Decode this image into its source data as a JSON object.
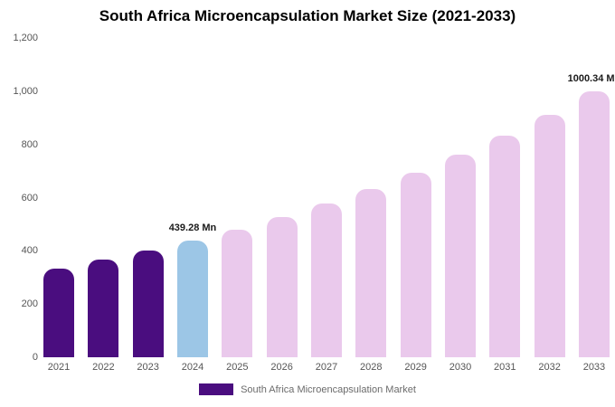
{
  "title": "South Africa Microencapsulation Market Size (2021-2033)",
  "legend": {
    "label": "South Africa Microencapsulation Market",
    "swatch_color": "#4a0d7f"
  },
  "colors": {
    "dark_purple": "#4a0d7f",
    "light_blue": "#9cc6e6",
    "light_pink": "#eac9ec",
    "axis_text": "#555555"
  },
  "chart_data": {
    "type": "bar",
    "title": "South Africa Microencapsulation Market Size (2021-2033)",
    "categories": [
      "2021",
      "2022",
      "2023",
      "2024",
      "2025",
      "2026",
      "2027",
      "2028",
      "2029",
      "2030",
      "2031",
      "2032",
      "2033"
    ],
    "values": [
      334,
      366,
      401,
      439.28,
      481,
      527,
      578,
      633,
      694,
      760,
      833,
      912,
      1000.34
    ],
    "bar_colors": [
      "#4a0d7f",
      "#4a0d7f",
      "#4a0d7f",
      "#9cc6e6",
      "#eac9ec",
      "#eac9ec",
      "#eac9ec",
      "#eac9ec",
      "#eac9ec",
      "#eac9ec",
      "#eac9ec",
      "#eac9ec",
      "#eac9ec"
    ],
    "annotations": [
      {
        "category": "2024",
        "text": "439.28 Mn"
      },
      {
        "category": "2033",
        "text": "1000.34 Mn"
      }
    ],
    "xlabel": "",
    "ylabel": "",
    "ylim": [
      0,
      1200
    ],
    "yticks": [
      {
        "value": 0,
        "label": "0"
      },
      {
        "value": 200,
        "label": "200"
      },
      {
        "value": 400,
        "label": "400"
      },
      {
        "value": 600,
        "label": "600"
      },
      {
        "value": 800,
        "label": "800"
      },
      {
        "value": 1000,
        "label": "1,000"
      },
      {
        "value": 1200,
        "label": "1,200"
      }
    ],
    "grid": false,
    "legend_position": "bottom",
    "legend_entries": [
      "South Africa Microencapsulation Market"
    ]
  }
}
